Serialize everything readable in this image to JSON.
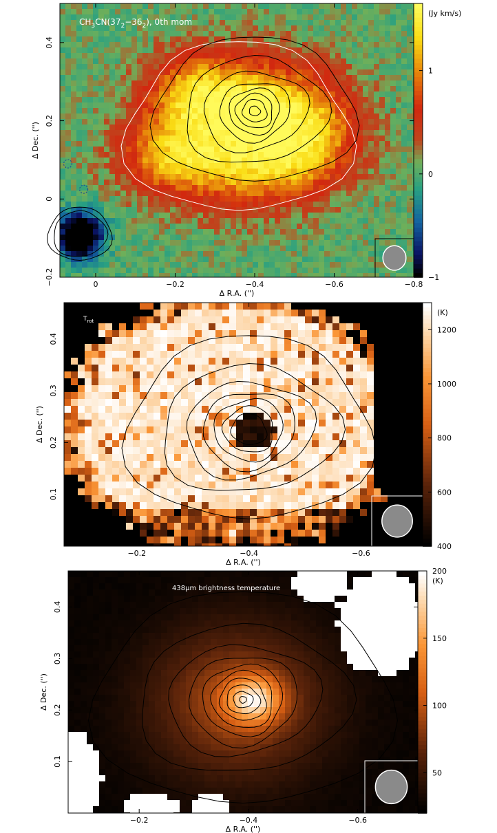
{
  "chart_data": [
    {
      "type": "heatmap",
      "title": "CH3CN(37₂−36₂), 0th mom",
      "title_parts": {
        "pre": "CH",
        "s1": "3",
        "mid": "CN(37",
        "s2": "2",
        "dash": "−36",
        "s3": "2",
        "post": "), 0th mom"
      },
      "xlabel": "Δ R.A. ('')",
      "ylabel": "Δ Dec. ('')",
      "xlim": [
        0.09,
        -0.8
      ],
      "ylim": [
        -0.2,
        0.5
      ],
      "xticks": [
        0,
        -0.2,
        -0.4,
        -0.6,
        -0.8
      ],
      "xtick_labels": [
        "0",
        "−0.2",
        "−0.4",
        "−0.6",
        "−0.8"
      ],
      "yticks": [
        -0.2,
        0,
        0.2,
        0.4
      ],
      "ytick_labels": [
        "−0.2",
        "0",
        "0.2",
        "0.4"
      ],
      "colorbar": {
        "label": "(Jy km/s)",
        "range": [
          -1,
          1.65
        ],
        "ticks": [
          -1,
          0,
          1
        ],
        "tick_labels": [
          "−1",
          "0",
          "1"
        ],
        "colormap": "rainbow"
      },
      "peaks": [
        {
          "x": -0.4,
          "y": 0.23,
          "value": 1.6,
          "sx": 0.06,
          "sy": 0.05
        },
        {
          "x": -0.25,
          "y": 0.27,
          "value": 1.25,
          "sx": 0.07,
          "sy": 0.07
        },
        {
          "x": -0.18,
          "y": 0.1,
          "value": 1.15,
          "sx": 0.09,
          "sy": 0.06
        },
        {
          "x": -0.45,
          "y": 0.1,
          "value": 1.0,
          "sx": 0.12,
          "sy": 0.06
        },
        {
          "x": -0.55,
          "y": 0.2,
          "value": 0.9,
          "sx": 0.08,
          "sy": 0.08
        },
        {
          "x": 0.04,
          "y": -0.09,
          "value": -1.7,
          "sx": 0.04,
          "sy": 0.04
        }
      ],
      "beam_shown": true
    },
    {
      "type": "heatmap",
      "title": "Trot",
      "title_parts": {
        "pre": "T",
        "sub": "rot"
      },
      "xlabel": "Δ R.A. ('')",
      "ylabel": "Δ Dec. ('')",
      "xlim": [
        -0.07,
        -0.71
      ],
      "ylim": [
        0.0,
        0.47
      ],
      "xticks": [
        -0.2,
        -0.4,
        -0.6
      ],
      "xtick_labels": [
        "−0.2",
        "−0.4",
        "−0.6"
      ],
      "yticks": [
        0.1,
        0.2,
        0.3,
        0.4
      ],
      "ytick_labels": [
        "0.1",
        "0.2",
        "0.3",
        "0.4"
      ],
      "colorbar": {
        "label": "(K)",
        "range": [
          400,
          1300
        ],
        "ticks": [
          400,
          600,
          800,
          1000,
          1200
        ],
        "tick_labels": [
          "400",
          "600",
          "800",
          "1000",
          "1200"
        ],
        "colormap": "heat"
      },
      "hot_core": {
        "x": -0.41,
        "y": 0.225,
        "value": 450
      },
      "beam_shown": true
    },
    {
      "type": "heatmap",
      "title": "438μm brightness temperature",
      "title_parts": {
        "pre": "438",
        "mu": "μ",
        "post": "m brightness temperature"
      },
      "xlabel": "Δ R.A. ('')",
      "ylabel": "Δ Dec. ('')",
      "xlim": [
        -0.07,
        -0.71
      ],
      "ylim": [
        0.0,
        0.47
      ],
      "xticks": [
        -0.2,
        -0.4,
        -0.6
      ],
      "xtick_labels": [
        "−0.2",
        "−0.4",
        "−0.6"
      ],
      "yticks": [
        0.1,
        0.2,
        0.3,
        0.4
      ],
      "ytick_labels": [
        "0.1",
        "0.2",
        "0.3",
        "0.4"
      ],
      "colorbar": {
        "label": "(K)",
        "range": [
          20,
          200
        ],
        "ticks": [
          50,
          100,
          150,
          200
        ],
        "tick_labels": [
          "50",
          "100",
          "150",
          "200"
        ],
        "colormap": "heat"
      },
      "peak": {
        "x": -0.41,
        "y": 0.225,
        "value": 200
      },
      "beam_shown": true
    }
  ]
}
